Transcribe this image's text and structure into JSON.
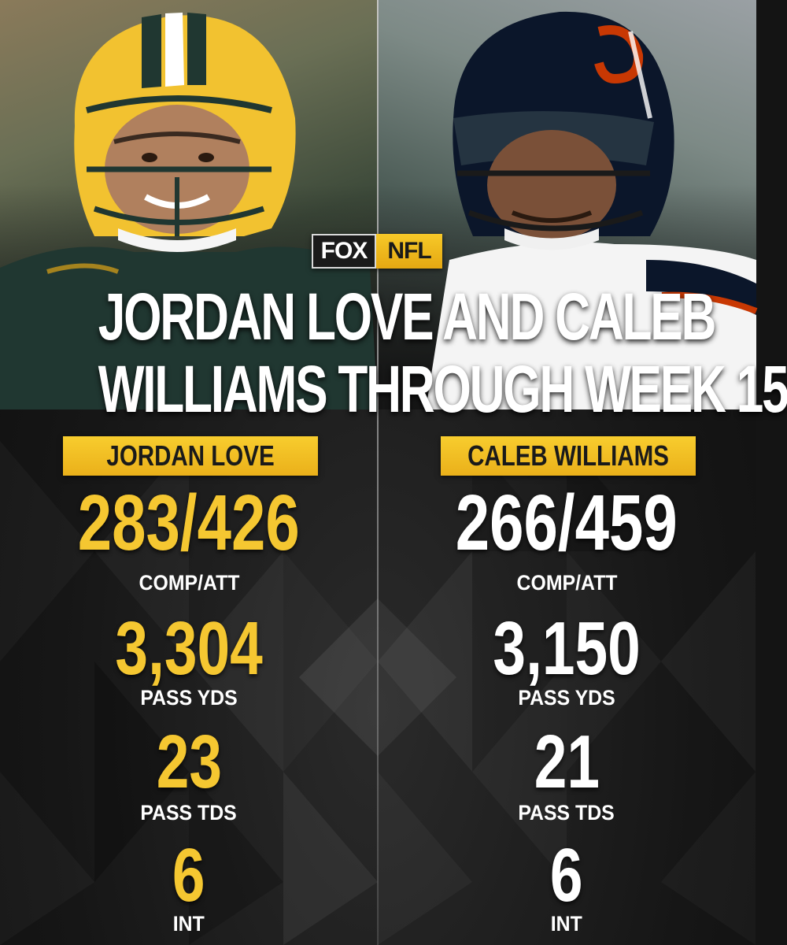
{
  "logo": {
    "fox": "FOX",
    "nfl": "NFL"
  },
  "headline": {
    "line1": "JORDAN LOVE AND CALEB",
    "line2": "WILLIAMS THROUGH WEEK 15"
  },
  "players": [
    {
      "name": "JORDAN LOVE",
      "stats": [
        {
          "value": "283/426",
          "label": "COMP/ATT"
        },
        {
          "value": "3,304",
          "label": "PASS YDS"
        },
        {
          "value": "23",
          "label": "PASS TDS"
        },
        {
          "value": "6",
          "label": "INT"
        }
      ],
      "value_color": "#f5c731"
    },
    {
      "name": "CALEB WILLIAMS",
      "stats": [
        {
          "value": "266/459",
          "label": "COMP/ATT"
        },
        {
          "value": "3,150",
          "label": "PASS YDS"
        },
        {
          "value": "21",
          "label": "PASS TDS"
        },
        {
          "value": "6",
          "label": "INT"
        }
      ],
      "value_color": "#ffffff"
    }
  ],
  "colors": {
    "accent_gold": "#f5c731",
    "background": "#161616",
    "packers_green": "#203731",
    "bears_navy": "#0b162a",
    "bears_orange": "#c83803"
  }
}
